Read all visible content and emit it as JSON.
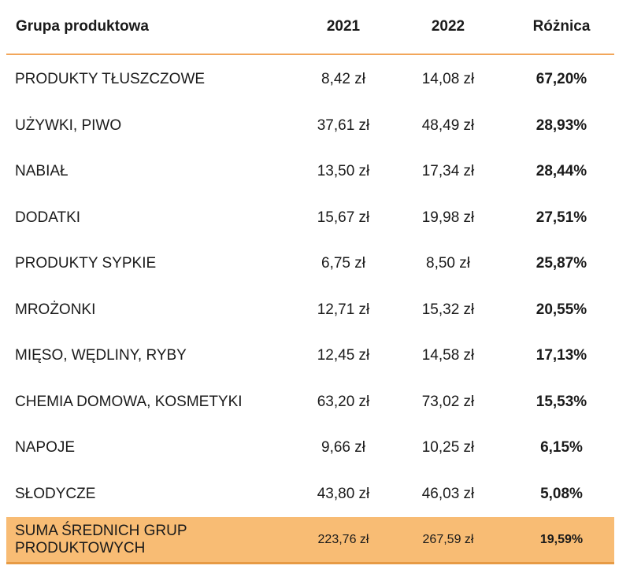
{
  "chart_data": {
    "type": "table",
    "columns": [
      "Grupa produktowa",
      "2021",
      "2022",
      "Różnica"
    ],
    "rows": [
      [
        "PRODUKTY TŁUSZCZOWE",
        "8,42 zł",
        "14,08 zł",
        "67,20%"
      ],
      [
        "UŻYWKI, PIWO",
        "37,61 zł",
        "48,49 zł",
        "28,93%"
      ],
      [
        "NABIAŁ",
        "13,50 zł",
        "17,34 zł",
        "28,44%"
      ],
      [
        "DODATKI",
        "15,67 zł",
        "19,98 zł",
        "27,51%"
      ],
      [
        "PRODUKTY SYPKIE",
        "6,75 zł",
        "8,50 zł",
        "25,87%"
      ],
      [
        "MROŻONKI",
        "12,71 zł",
        "15,32 zł",
        "20,55%"
      ],
      [
        "MIĘSO, WĘDLINY, RYBY",
        "12,45 zł",
        "14,58 zł",
        "17,13%"
      ],
      [
        "CHEMIA DOMOWA, KOSMETYKI",
        "63,20 zł",
        "73,02 zł",
        "15,53%"
      ],
      [
        "NAPOJE",
        "9,66 zł",
        "10,25 zł",
        "6,15%"
      ],
      [
        "SŁODYCZE",
        "43,80 zł",
        "46,03 zł",
        "5,08%"
      ]
    ],
    "total": [
      "SUMA ŚREDNICH GRUP PRODUKTOWYCH",
      "223,76 zł",
      "267,59 zł",
      "19,59%"
    ]
  },
  "colors": {
    "header_rule": "#f2a65a",
    "total_background": "#f8bc74",
    "total_rule": "#e79b45"
  }
}
